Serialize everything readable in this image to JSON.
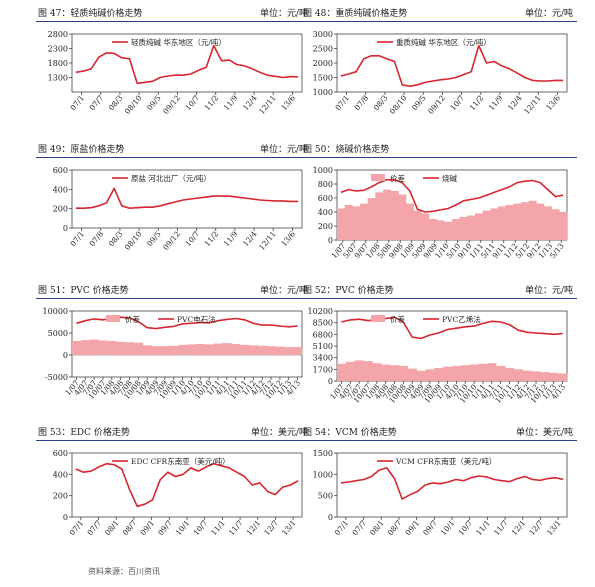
{
  "colors": {
    "accent": "#d7262f",
    "diff_fill": "#f3a5a9",
    "rule": "#2b3f8c"
  },
  "source": "资料来源：百川资讯",
  "panels": [
    {
      "title": "图 47：轻质纯碱价格走势",
      "unit": "单位：元/吨",
      "chart_data": {
        "type": "line",
        "ylim": [
          800,
          2800
        ],
        "yticks": [
          1300,
          1800,
          2300,
          2800
        ],
        "xticks": [
          "07/1",
          "07/7",
          "08/3",
          "08/10",
          "09/5",
          "09/12",
          "10/7",
          "11/2",
          "11/9",
          "12/4",
          "12/11",
          "13/6"
        ],
        "grid": false,
        "legend_position": "top-right",
        "series": [
          {
            "name": "轻质纯碱 华东地区（元/吨）",
            "kind": "line",
            "values": [
              1480,
              1520,
              1600,
              2000,
              2150,
              2130,
              1980,
              1950,
              1100,
              1130,
              1170,
              1300,
              1350,
              1380,
              1380,
              1420,
              1550,
              1650,
              2400,
              1880,
              1900,
              1750,
              1700,
              1600,
              1480,
              1380,
              1340,
              1300,
              1330,
              1320
            ]
          }
        ]
      }
    },
    {
      "title": "图 48：重质纯碱价格走势",
      "unit": "单位：元/吨",
      "chart_data": {
        "type": "line",
        "ylim": [
          1000,
          3000
        ],
        "yticks": [
          1000,
          1500,
          2000,
          2500,
          3000
        ],
        "xticks": [
          "07/1",
          "07/8",
          "08/3",
          "08/10",
          "09/5",
          "09/12",
          "10/7",
          "11/2",
          "11/9",
          "12/4",
          "12/11",
          "13/6"
        ],
        "grid": false,
        "legend_position": "top-right",
        "series": [
          {
            "name": "重质纯碱 华东地区（元/吨）",
            "kind": "line",
            "values": [
              1550,
              1620,
              1700,
              2150,
              2250,
              2250,
              2150,
              2050,
              1250,
              1200,
              1250,
              1330,
              1380,
              1420,
              1450,
              1500,
              1600,
              1700,
              2600,
              2000,
              2050,
              1900,
              1800,
              1650,
              1500,
              1400,
              1380,
              1380,
              1400,
              1400
            ]
          }
        ]
      }
    },
    {
      "title": "图 49：原盐价格走势",
      "unit": "单位：元/吨",
      "chart_data": {
        "type": "line",
        "ylim": [
          0,
          600
        ],
        "yticks": [
          0,
          200,
          400,
          600
        ],
        "xticks": [
          "07/1",
          "07/8",
          "08/3",
          "08/10",
          "09/5",
          "09/12",
          "10/7",
          "11/2",
          "11/9",
          "12/4",
          "12/11",
          "13/6"
        ],
        "grid": false,
        "legend_position": "top-right",
        "series": [
          {
            "name": "原盐 河北出厂（元/吨）",
            "kind": "line",
            "values": [
              205,
              205,
              210,
              230,
              260,
              410,
              230,
              205,
              210,
              215,
              215,
              230,
              250,
              270,
              290,
              300,
              310,
              320,
              330,
              330,
              330,
              320,
              310,
              300,
              290,
              285,
              280,
              280,
              275,
              275
            ]
          }
        ]
      }
    },
    {
      "title": "图 50：烧碱价格走势",
      "unit": "",
      "chart_data": {
        "type": "bar",
        "ylim": [
          0,
          1000
        ],
        "yticks": [
          0,
          200,
          400,
          600,
          800,
          1000
        ],
        "xticks": [
          "1/07",
          "5/07",
          "9/07",
          "1/08",
          "5/08",
          "9/08",
          "1/09",
          "5/09",
          "9/09",
          "1/10",
          "5/10",
          "9/10",
          "1/11",
          "5/11",
          "9/11",
          "1/12",
          "5/12",
          "9/12",
          "1/13",
          "5/13"
        ],
        "grid": false,
        "legend_position": "top",
        "series": [
          {
            "name": "价差",
            "kind": "bar",
            "values": [
              450,
              500,
              480,
              520,
              600,
              680,
              720,
              700,
              650,
              520,
              420,
              380,
              300,
              280,
              260,
              300,
              330,
              350,
              380,
              420,
              450,
              480,
              500,
              520,
              540,
              560,
              520,
              480,
              440,
              400
            ]
          },
          {
            "name": "烧碱",
            "kind": "line",
            "values": [
              680,
              720,
              700,
              710,
              760,
              820,
              860,
              860,
              820,
              700,
              440,
              400,
              410,
              430,
              450,
              500,
              560,
              580,
              600,
              640,
              680,
              720,
              760,
              820,
              840,
              850,
              820,
              720,
              620,
              640
            ]
          }
        ]
      }
    },
    {
      "title": "图 51：PVC 价格走势",
      "unit": "单位：元/吨",
      "chart_data": {
        "type": "bar",
        "ylim": [
          -5000,
          10000
        ],
        "yticks": [
          -5000,
          0,
          5000,
          10000
        ],
        "xticks": [
          "1/07",
          "4/07",
          "7/07",
          "10/07",
          "1/08",
          "4/08",
          "7/08",
          "10/08",
          "1/09",
          "4/09",
          "7/09",
          "10/09",
          "1/10",
          "4/10",
          "7/10",
          "10/10",
          "1/11",
          "4/11",
          "7/11",
          "10/11",
          "1/12",
          "4/12",
          "7/12",
          "10/12",
          "1/13",
          "4/13"
        ],
        "grid": false,
        "legend_position": "top",
        "series": [
          {
            "name": "价差",
            "kind": "bar",
            "values": [
              3200,
              3400,
              3500,
              3300,
              3200,
              3000,
              2900,
              2800,
              2200,
              2000,
              2000,
              2100,
              2300,
              2400,
              2500,
              2400,
              2600,
              2700,
              2500,
              2300,
              2200,
              2100,
              2000,
              1900,
              1800,
              1800
            ]
          },
          {
            "name": "PVC电石法",
            "kind": "line",
            "values": [
              7200,
              7800,
              8200,
              8000,
              8300,
              8600,
              8400,
              7600,
              6200,
              6000,
              6300,
              6500,
              7100,
              7200,
              7400,
              7300,
              7800,
              8100,
              8300,
              8000,
              7200,
              6800,
              6800,
              6600,
              6400,
              6600
            ]
          }
        ]
      }
    },
    {
      "title": "图 52：PVC 价格走势",
      "unit": "单位：元/吨",
      "chart_data": {
        "type": "bar",
        "ylim": [
          0,
          10200
        ],
        "yticks": [
          0,
          1700,
          3400,
          5100,
          6800,
          8500,
          10200
        ],
        "xticks": [
          "1/07",
          "4/07",
          "7/07",
          "10/07",
          "1/08",
          "4/08",
          "7/08",
          "10/08",
          "1/09",
          "4/09",
          "7/09",
          "10/09",
          "1/10",
          "4/10",
          "7/10",
          "10/10",
          "1/11",
          "4/11",
          "7/11",
          "10/11",
          "1/12",
          "4/12",
          "7/12",
          "10/12",
          "1/13",
          "4/13"
        ],
        "grid": false,
        "legend_position": "top",
        "series": [
          {
            "name": "价差",
            "kind": "bar",
            "values": [
              2500,
              2800,
              3000,
              2900,
              2600,
              2400,
              2300,
              2200,
              1800,
              1500,
              1700,
              1900,
              2100,
              2200,
              2300,
              2400,
              2500,
              2600,
              2200,
              1900,
              1700,
              1500,
              1400,
              1300,
              1200,
              1100
            ]
          },
          {
            "name": "PVC乙烯法",
            "kind": "line",
            "values": [
              8600,
              8900,
              9000,
              8800,
              8900,
              9100,
              9300,
              8600,
              6400,
              6200,
              6700,
              7000,
              7500,
              7700,
              7900,
              8000,
              8400,
              8700,
              8600,
              8200,
              7400,
              7100,
              7000,
              6900,
              6800,
              6900
            ]
          }
        ]
      }
    },
    {
      "title": "图 53：EDC 价格走势",
      "unit": "单位：美元/吨",
      "chart_data": {
        "type": "line",
        "ylim": [
          0,
          600
        ],
        "yticks": [
          0,
          200,
          400,
          600
        ],
        "xticks": [
          "07/1",
          "07/7",
          "08/1",
          "08/7",
          "09/1",
          "09/7",
          "10/1",
          "10/7",
          "11/1",
          "11/7",
          "12/1",
          "12/7",
          "13/1"
        ],
        "grid": false,
        "legend_position": "top-right",
        "series": [
          {
            "name": "EDC CFR东南亚（美元/吨）",
            "kind": "line",
            "values": [
              450,
              420,
              430,
              470,
              500,
              490,
              450,
              260,
              100,
              120,
              160,
              350,
              420,
              380,
              400,
              460,
              430,
              470,
              500,
              480,
              460,
              420,
              380,
              300,
              320,
              240,
              210,
              280,
              300,
              340
            ]
          }
        ]
      }
    },
    {
      "title": "图 54：VCM 价格走势",
      "unit": "单位：美元/吨",
      "chart_data": {
        "type": "line",
        "ylim": [
          0,
          1500
        ],
        "yticks": [
          0,
          500,
          1000,
          1500
        ],
        "xticks": [
          "07/1",
          "07/7",
          "08/1",
          "08/7",
          "09/1",
          "09/7",
          "10/1",
          "10/7",
          "11/1",
          "11/7",
          "12/1",
          "12/7",
          "13/1"
        ],
        "grid": false,
        "legend_position": "top-right",
        "series": [
          {
            "name": "VCM CFR东南亚（美元/吨）",
            "kind": "line",
            "values": [
              800,
              820,
              850,
              880,
              950,
              1100,
              1150,
              900,
              420,
              520,
              600,
              750,
              800,
              780,
              820,
              880,
              850,
              920,
              960,
              940,
              880,
              850,
              830,
              900,
              950,
              880,
              860,
              900,
              920,
              880
            ]
          }
        ]
      }
    }
  ]
}
